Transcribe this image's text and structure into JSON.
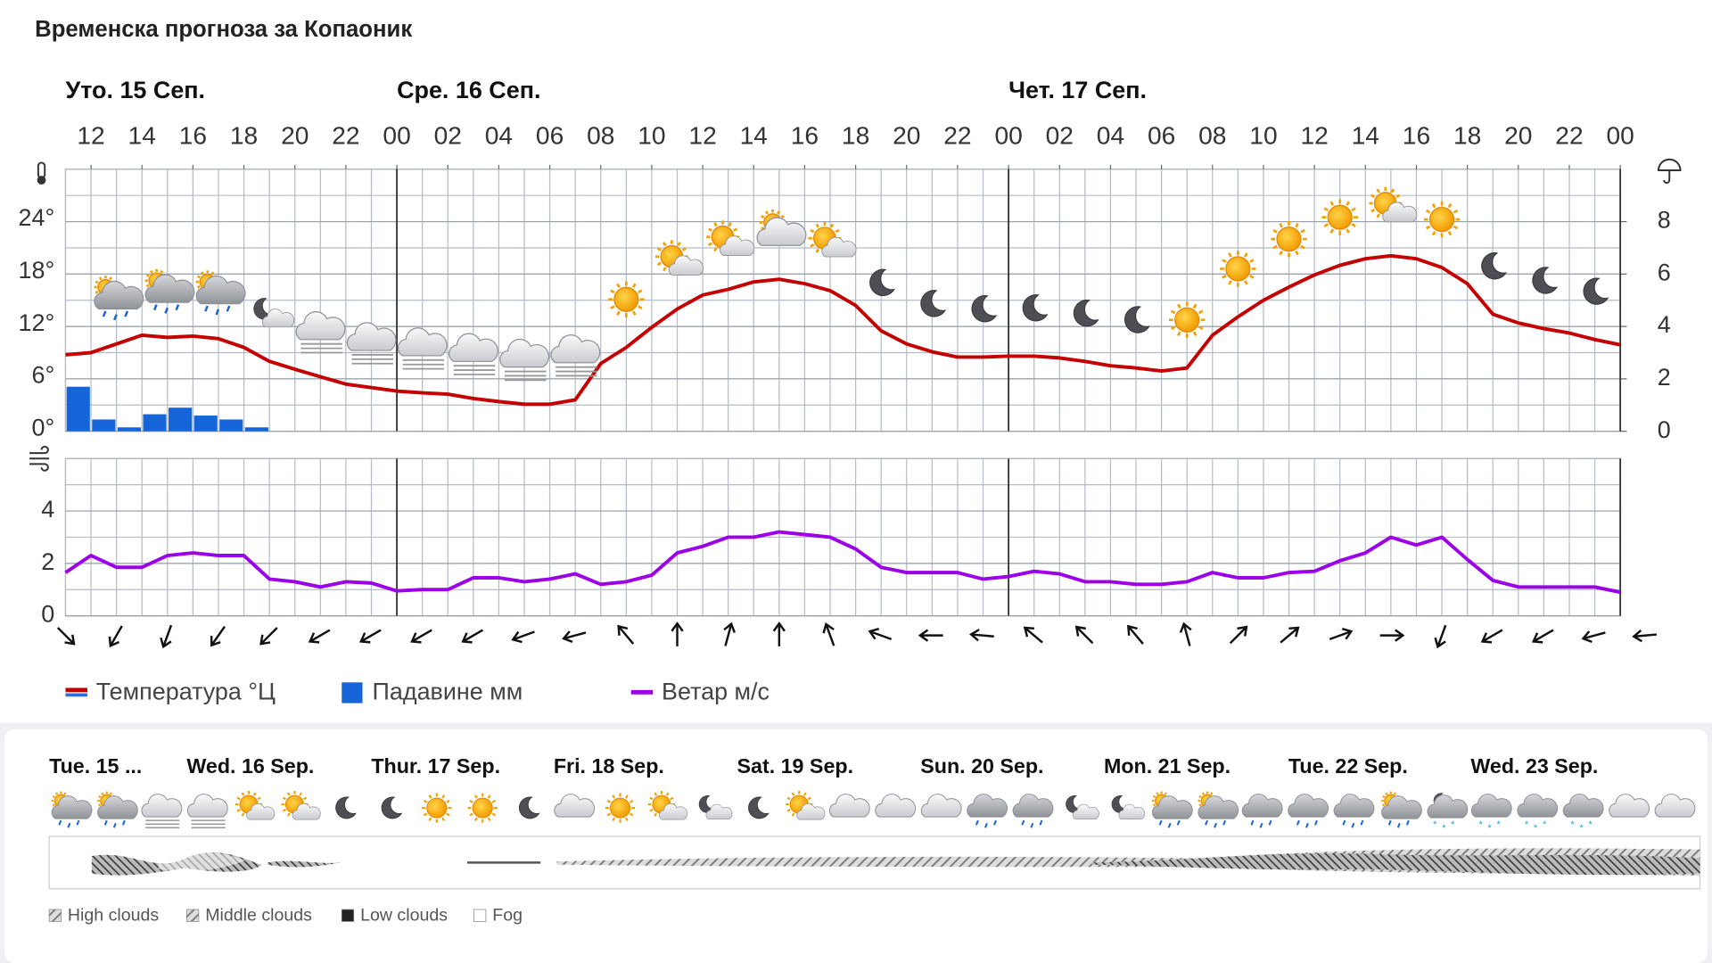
{
  "chart_data": {
    "type": "line",
    "title": "Временска прогноза за Копаоник",
    "days": [
      {
        "label": "Уто. 15 Сеп.",
        "x": 11
      },
      {
        "label": "Сре. 16 Сеп.",
        "x": 24
      },
      {
        "label": "Чет. 17 Сеп.",
        "x": 48
      }
    ],
    "x": [
      11,
      12,
      13,
      14,
      15,
      16,
      17,
      18,
      19,
      20,
      21,
      22,
      23,
      24,
      25,
      26,
      27,
      28,
      29,
      30,
      31,
      32,
      33,
      34,
      35,
      36,
      37,
      38,
      39,
      40,
      41,
      42,
      43,
      44,
      45,
      46,
      47,
      48,
      49,
      50,
      51,
      52,
      53,
      54,
      55,
      56,
      57,
      58,
      59,
      60,
      61,
      62,
      63,
      64,
      65,
      66,
      67,
      68,
      69,
      70,
      71,
      72
    ],
    "xlim": [
      11,
      72
    ],
    "xticks": [
      12,
      14,
      16,
      18,
      20,
      22,
      {
        "value": 24,
        "label": "00"
      },
      {
        "value": 26,
        "label": "02"
      },
      {
        "value": 28,
        "label": "04"
      },
      {
        "value": 30,
        "label": "06"
      },
      {
        "value": 32,
        "label": "08"
      },
      {
        "value": 34,
        "label": "10"
      },
      {
        "value": 36,
        "label": "12"
      },
      {
        "value": 38,
        "label": "14"
      },
      {
        "value": 40,
        "label": "16"
      },
      {
        "value": 42,
        "label": "18"
      },
      {
        "value": 44,
        "label": "20"
      },
      {
        "value": 46,
        "label": "22"
      },
      {
        "value": 48,
        "label": "00"
      },
      {
        "value": 50,
        "label": "02"
      },
      {
        "value": 52,
        "label": "04"
      },
      {
        "value": 54,
        "label": "06"
      },
      {
        "value": 56,
        "label": "08"
      },
      {
        "value": 58,
        "label": "10"
      },
      {
        "value": 60,
        "label": "12"
      },
      {
        "value": 62,
        "label": "14"
      },
      {
        "value": 64,
        "label": "16"
      },
      {
        "value": 66,
        "label": "18"
      },
      {
        "value": 68,
        "label": "20"
      },
      {
        "value": 70,
        "label": "22"
      },
      {
        "value": 72,
        "label": "00"
      }
    ],
    "ylim": [
      0,
      30
    ],
    "yticks": [
      {
        "value": 0,
        "label": "0°"
      },
      {
        "value": 6,
        "label": "6°"
      },
      {
        "value": 12,
        "label": "12°"
      },
      {
        "value": 18,
        "label": "18°"
      },
      {
        "value": 24,
        "label": "24°"
      }
    ],
    "y2lim": [
      0,
      10
    ],
    "y2ticks": [
      0,
      2,
      4,
      6,
      8
    ],
    "wind_ylim": [
      0,
      6
    ],
    "wind_yticks": [
      0,
      2,
      4
    ],
    "grid": true,
    "series": [
      {
        "name": "Температура °Ц",
        "color": "#c40000",
        "values": [
          8.75,
          9,
          10,
          11,
          10.75,
          10.9,
          10.6,
          9.6,
          8,
          7.1,
          6.25,
          5.4,
          5,
          4.6,
          4.4,
          4.25,
          3.75,
          3.4,
          3.1,
          3.1,
          3.6,
          7.75,
          9.6,
          11.9,
          14,
          15.6,
          16.25,
          17.1,
          17.4,
          16.9,
          16.1,
          14.4,
          11.5,
          10,
          9.1,
          8.5,
          8.5,
          8.6,
          8.6,
          8.4,
          8,
          7.5,
          7.25,
          6.9,
          7.25,
          11,
          13.1,
          15,
          16.5,
          17.9,
          19,
          19.75,
          20.1,
          19.75,
          18.75,
          16.9,
          13.4,
          12.4,
          11.75,
          11.25,
          10.5,
          9.9
        ]
      },
      {
        "name": "Падавине мм",
        "type": "bar",
        "axis": "y2",
        "color": "#1565d8",
        "x": [
          11,
          12,
          13,
          14,
          15,
          16,
          17,
          18
        ],
        "values": [
          1.7,
          0.45,
          0.15,
          0.65,
          0.9,
          0.6,
          0.45,
          0.15
        ]
      },
      {
        "name": "Ветар м/с",
        "axis": "wind",
        "color": "#9b00e8",
        "values": [
          1.65,
          2.3,
          1.85,
          1.85,
          2.3,
          2.4,
          2.3,
          2.3,
          1.4,
          1.3,
          1.1,
          1.3,
          1.25,
          0.95,
          1,
          1,
          1.45,
          1.45,
          1.3,
          1.4,
          1.6,
          1.2,
          1.3,
          1.55,
          2.4,
          2.65,
          3,
          3,
          3.2,
          3.1,
          3,
          2.55,
          1.85,
          1.65,
          1.65,
          1.65,
          1.4,
          1.5,
          1.7,
          1.6,
          1.3,
          1.3,
          1.2,
          1.2,
          1.3,
          1.65,
          1.45,
          1.45,
          1.65,
          1.7,
          2.1,
          2.4,
          3,
          2.7,
          3,
          2.15,
          1.35,
          1.1,
          1.1,
          1.1,
          1.1,
          0.9
        ]
      }
    ],
    "wind_directions": {
      "x": [
        11,
        13,
        15,
        17,
        19,
        21,
        23,
        25,
        27,
        29,
        31,
        33,
        35,
        37,
        39,
        41,
        43,
        45,
        47,
        49,
        51,
        53,
        55,
        57,
        59,
        61,
        63,
        65,
        67,
        69,
        71,
        73
      ],
      "values": [
        135,
        210,
        200,
        215,
        225,
        240,
        240,
        240,
        240,
        250,
        255,
        320,
        0,
        15,
        0,
        340,
        290,
        270,
        275,
        310,
        315,
        320,
        345,
        45,
        50,
        70,
        90,
        200,
        240,
        240,
        255,
        265
      ]
    }
  },
  "forecast": {
    "days": [
      "Tue. 15 ...",
      "Wed. 16 Sep.",
      "Thur. 17 Sep.",
      "Fri. 18 Sep.",
      "Sat. 19 Sep.",
      "Sun. 20 Sep.",
      "Mon. 21 Sep.",
      "Tue. 22 Sep.",
      "Wed. 23 Sep."
    ],
    "cloud_legend": [
      "High clouds",
      "Middle clouds",
      "Low clouds",
      "Fog"
    ]
  }
}
